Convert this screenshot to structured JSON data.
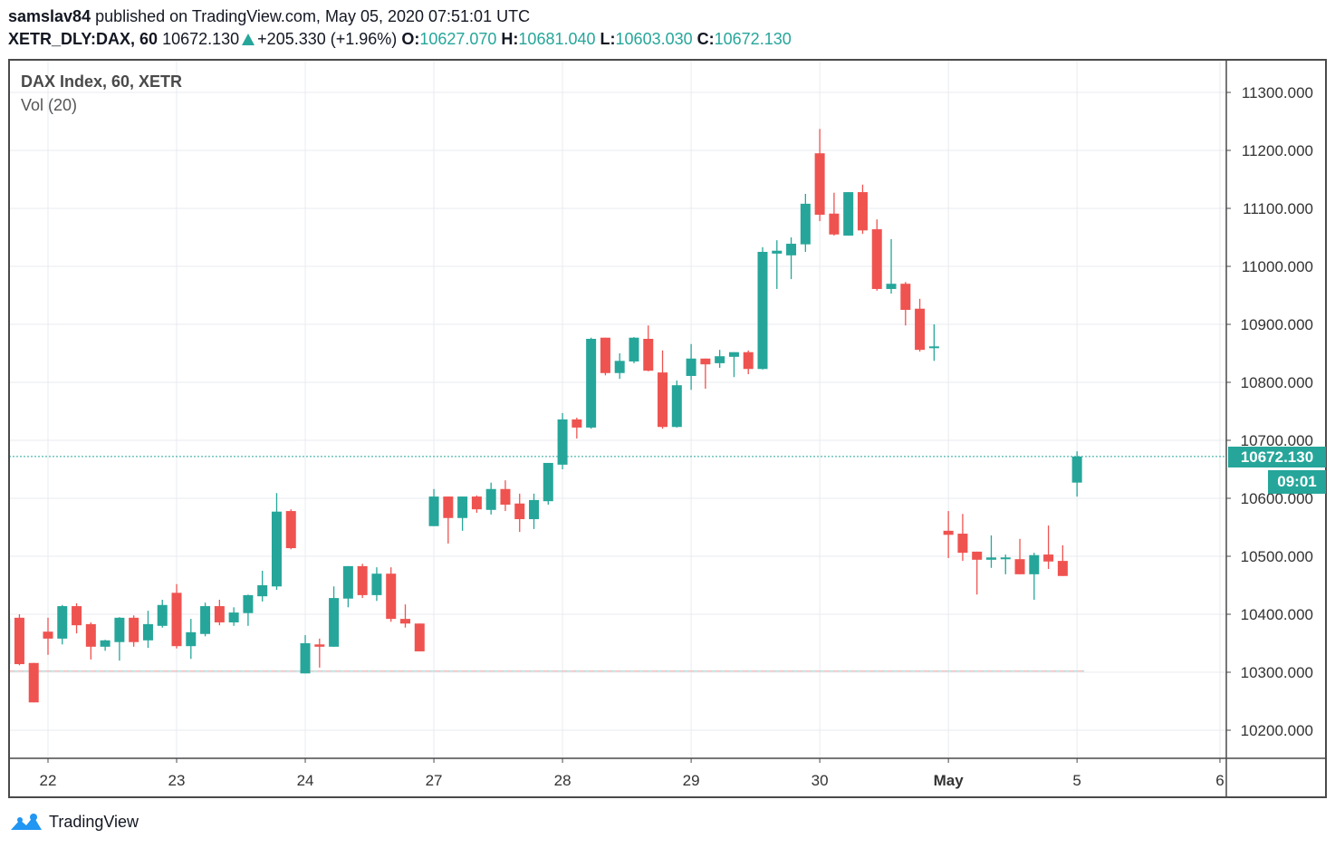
{
  "header": {
    "author": "samslav84",
    "published_text": "published on TradingView.com, May 05, 2020 07:51:01 UTC",
    "symbol": "XETR_DLY:DAX, 60",
    "last": "10672.130",
    "change": "+205.330 (+1.96%)",
    "o_label": "O:",
    "o": "10627.070",
    "h_label": "H:",
    "h": "10681.040",
    "l_label": "L:",
    "l": "10603.030",
    "c_label": "C:",
    "c": "10672.130"
  },
  "legend": {
    "title": "DAX Index, 60, XETR",
    "volume": "Vol (20)"
  },
  "last_price_tag": "10672.130",
  "countdown_tag": "09:01",
  "footer": {
    "brand": "TradingView"
  },
  "colors": {
    "up": "#26a69a",
    "down": "#ef5350",
    "grid": "#e8ebf0",
    "border": "#4a4a4a"
  },
  "chart_data": {
    "type": "candlestick",
    "title": "DAX Index, 60, XETR",
    "ylim": [
      10150,
      11400
    ],
    "yticks": [
      "10200.000",
      "10300.000",
      "10400.000",
      "10500.000",
      "10600.000",
      "10700.000",
      "10800.000",
      "10900.000",
      "11000.000",
      "11100.000",
      "11200.000",
      "11300.000"
    ],
    "ytick_values": [
      10200,
      10300,
      10400,
      10500,
      10600,
      10700,
      10800,
      10900,
      11000,
      11100,
      11200,
      11300
    ],
    "xticks": [
      {
        "label": "22",
        "index": 3
      },
      {
        "label": "23",
        "index": 12
      },
      {
        "label": "24",
        "index": 21
      },
      {
        "label": "27",
        "index": 30
      },
      {
        "label": "28",
        "index": 39
      },
      {
        "label": "29",
        "index": 48
      },
      {
        "label": "30",
        "index": 57
      },
      {
        "label": "May",
        "index": 66
      },
      {
        "label": "5",
        "index": 75
      },
      {
        "label": "6",
        "index": 85
      }
    ],
    "last_price": 10672.13,
    "reference_line": 10302,
    "candles_ohlc": [
      [
        10314,
        10397,
        10311,
        10392
      ],
      [
        10394,
        10400,
        10312,
        10314
      ],
      [
        10316,
        10316,
        10248,
        10248
      ],
      [
        10370,
        10394,
        10330,
        10358
      ],
      [
        10358,
        10416,
        10348,
        10414
      ],
      [
        10414,
        10419,
        10367,
        10381
      ],
      [
        10383,
        10386,
        10322,
        10344
      ],
      [
        10344,
        10356,
        10337,
        10355
      ],
      [
        10352,
        10395,
        10320,
        10394
      ],
      [
        10394,
        10398,
        10344,
        10352
      ],
      [
        10355,
        10406,
        10342,
        10383
      ],
      [
        10380,
        10425,
        10377,
        10416
      ],
      [
        10437,
        10452,
        10341,
        10345
      ],
      [
        10345,
        10392,
        10323,
        10369
      ],
      [
        10366,
        10420,
        10362,
        10414
      ],
      [
        10414,
        10425,
        10381,
        10386
      ],
      [
        10386,
        10412,
        10380,
        10403
      ],
      [
        10402,
        10434,
        10380,
        10433
      ],
      [
        10431,
        10475,
        10422,
        10450
      ],
      [
        10448,
        10609,
        10442,
        10577
      ],
      [
        10578,
        10581,
        10512,
        10514
      ],
      [
        10298,
        10364,
        10298,
        10350
      ],
      [
        10348,
        10358,
        10308,
        10344
      ],
      [
        10344,
        10448,
        10344,
        10428
      ],
      [
        10427,
        10483,
        10412,
        10483
      ],
      [
        10483,
        10487,
        10428,
        10433
      ],
      [
        10433,
        10481,
        10423,
        10470
      ],
      [
        10470,
        10481,
        10387,
        10392
      ],
      [
        10392,
        10417,
        10377,
        10384
      ],
      [
        10384,
        10384,
        10336,
        10336
      ],
      [
        10552,
        10616,
        10552,
        10603
      ],
      [
        10603,
        10603,
        10522,
        10566
      ],
      [
        10566,
        10603,
        10544,
        10603
      ],
      [
        10603,
        10605,
        10575,
        10581
      ],
      [
        10580,
        10627,
        10572,
        10616
      ],
      [
        10616,
        10631,
        10578,
        10589
      ],
      [
        10591,
        10608,
        10542,
        10564
      ],
      [
        10564,
        10608,
        10547,
        10597
      ],
      [
        10595,
        10661,
        10589,
        10661
      ],
      [
        10658,
        10747,
        10650,
        10736
      ],
      [
        10736,
        10739,
        10703,
        10722
      ],
      [
        10722,
        10877,
        10720,
        10875
      ],
      [
        10877,
        10877,
        10812,
        10816
      ],
      [
        10816,
        10850,
        10806,
        10837
      ],
      [
        10836,
        10878,
        10833,
        10877
      ],
      [
        10875,
        10898,
        10819,
        10820
      ],
      [
        10817,
        10855,
        10720,
        10723
      ],
      [
        10723,
        10803,
        10722,
        10795
      ],
      [
        10811,
        10866,
        10787,
        10841
      ],
      [
        10841,
        10841,
        10789,
        10831
      ],
      [
        10833,
        10856,
        10825,
        10845
      ],
      [
        10844,
        10852,
        10809,
        10852
      ],
      [
        10852,
        10855,
        10814,
        10823
      ],
      [
        10823,
        11033,
        10822,
        11025
      ],
      [
        11022,
        11045,
        10961,
        11027
      ],
      [
        11019,
        11050,
        10978,
        11039
      ],
      [
        11038,
        11125,
        11025,
        11108
      ],
      [
        11195,
        11237,
        11078,
        11089
      ],
      [
        11091,
        11127,
        11053,
        11055
      ],
      [
        11053,
        11128,
        11053,
        11128
      ],
      [
        11128,
        11141,
        11056,
        11062
      ],
      [
        11064,
        11081,
        10958,
        10961
      ],
      [
        10961,
        11047,
        10953,
        10970
      ],
      [
        10970,
        10973,
        10898,
        10925
      ],
      [
        10927,
        10944,
        10853,
        10856
      ],
      [
        10859,
        10900,
        10837,
        10862
      ],
      [
        10544,
        10578,
        10497,
        10537
      ],
      [
        10539,
        10573,
        10492,
        10506
      ],
      [
        10508,
        10508,
        10434,
        10494
      ],
      [
        10494,
        10536,
        10480,
        10498
      ],
      [
        10497,
        10503,
        10469,
        10498
      ],
      [
        10495,
        10530,
        10469,
        10469
      ],
      [
        10469,
        10506,
        10425,
        10502
      ],
      [
        10503,
        10553,
        10478,
        10491
      ],
      [
        10492,
        10519,
        10466,
        10466
      ],
      [
        10627.07,
        10681.04,
        10603.03,
        10672.13
      ]
    ]
  }
}
